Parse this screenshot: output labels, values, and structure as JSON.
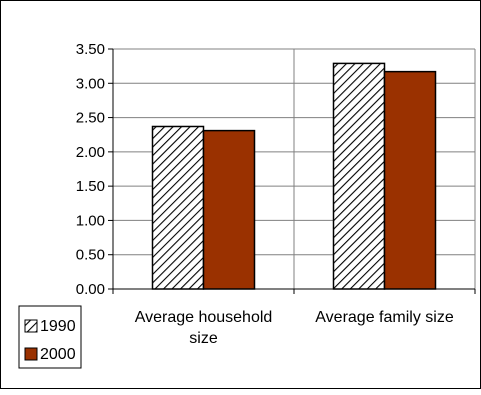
{
  "chart_data": {
    "type": "bar",
    "categories": [
      "Average household size",
      "Average family size"
    ],
    "category_label_lines": [
      [
        "Average household",
        "size"
      ],
      [
        "Average family size"
      ]
    ],
    "series": [
      {
        "name": "1990",
        "values": [
          2.37,
          3.29
        ],
        "fill": "#ffffff",
        "pattern": "diagonal-hatch"
      },
      {
        "name": "2000",
        "values": [
          2.31,
          3.17
        ],
        "fill": "#9a3100"
      }
    ],
    "ylim": [
      0,
      3.5
    ],
    "yticks": [
      0.0,
      0.5,
      1.0,
      1.5,
      2.0,
      2.5,
      3.0,
      3.5
    ],
    "ytick_labels": [
      "0.00",
      "0.50",
      "1.00",
      "1.50",
      "2.00",
      "2.50",
      "3.00",
      "3.50"
    ],
    "grid": true,
    "legend_placement": "bottom-left",
    "colors": {
      "axis": "#000000",
      "grid": "#808080",
      "bar_outline": "#000000",
      "hatch_line": "#000000"
    }
  }
}
